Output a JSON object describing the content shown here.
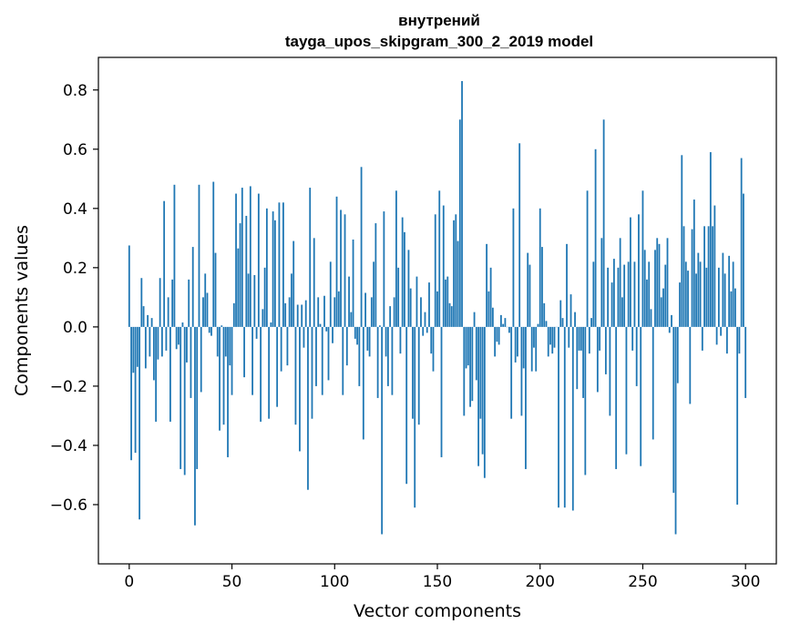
{
  "chart_data": {
    "type": "bar",
    "title_line1": "внутрений",
    "title_line2": "tayga_upos_skipgram_300_2_2019 model",
    "xlabel": "Vector components",
    "ylabel": "Components values",
    "xlim": [
      -15,
      315
    ],
    "ylim": [
      -0.8,
      0.91
    ],
    "xticks": [
      0,
      50,
      100,
      150,
      200,
      250,
      300
    ],
    "yticks": [
      -0.6,
      -0.4,
      -0.2,
      0.0,
      0.2,
      0.4,
      0.6,
      0.8
    ],
    "ytick_labels": [
      "−0.6",
      "−0.4",
      "−0.2",
      "0.0",
      "0.2",
      "0.4",
      "0.6",
      "0.8"
    ],
    "bar_color": "#1f77b4",
    "values": [
      0.275,
      -0.45,
      -0.155,
      -0.425,
      -0.135,
      -0.65,
      0.165,
      0.07,
      -0.14,
      0.04,
      -0.1,
      0.03,
      -0.18,
      -0.32,
      -0.11,
      0.165,
      -0.1,
      0.425,
      -0.08,
      0.1,
      -0.32,
      0.16,
      0.48,
      -0.075,
      -0.06,
      -0.48,
      0.015,
      -0.5,
      -0.12,
      0.16,
      -0.24,
      0.27,
      -0.67,
      -0.48,
      0.48,
      -0.22,
      0.1,
      0.18,
      0.115,
      -0.02,
      -0.03,
      0.49,
      0.25,
      -0.1,
      -0.35,
      0.005,
      -0.33,
      -0.1,
      -0.44,
      -0.13,
      -0.23,
      0.08,
      0.45,
      0.265,
      0.35,
      0.47,
      -0.17,
      0.375,
      0.18,
      0.475,
      -0.23,
      0.175,
      -0.04,
      0.45,
      -0.32,
      0.06,
      0.2,
      0.4,
      -0.31,
      0.015,
      0.39,
      0.36,
      -0.27,
      0.42,
      -0.15,
      0.42,
      0.08,
      -0.13,
      0.1,
      0.18,
      0.29,
      -0.33,
      0.075,
      -0.42,
      0.075,
      -0.07,
      0.09,
      -0.55,
      0.47,
      -0.31,
      0.3,
      -0.2,
      0.1,
      0.01,
      -0.23,
      0.105,
      -0.015,
      -0.18,
      0.22,
      -0.055,
      0.1,
      0.44,
      0.12,
      0.395,
      -0.23,
      0.38,
      -0.13,
      0.17,
      0.05,
      0.295,
      -0.04,
      -0.06,
      -0.2,
      0.54,
      -0.38,
      0.115,
      -0.08,
      -0.1,
      0.1,
      0.22,
      0.35,
      -0.24,
      0.005,
      -0.7,
      0.39,
      -0.1,
      -0.2,
      0.07,
      -0.23,
      0.1,
      0.46,
      0.2,
      -0.09,
      0.37,
      0.32,
      -0.53,
      0.26,
      0.13,
      -0.31,
      -0.61,
      0.17,
      -0.33,
      0.1,
      -0.03,
      0.05,
      -0.02,
      0.15,
      -0.09,
      -0.15,
      0.38,
      0.12,
      0.46,
      -0.44,
      0.41,
      0.16,
      0.17,
      0.08,
      0.07,
      0.36,
      0.38,
      0.29,
      0.7,
      0.83,
      -0.3,
      -0.14,
      -0.13,
      -0.27,
      -0.25,
      0.05,
      -0.18,
      -0.47,
      -0.31,
      -0.43,
      -0.51,
      0.28,
      0.12,
      0.2,
      0.065,
      -0.1,
      -0.05,
      -0.06,
      0.04,
      0.01,
      0.03,
      0.0,
      -0.02,
      -0.31,
      0.4,
      -0.12,
      -0.1,
      0.62,
      -0.3,
      -0.14,
      -0.48,
      0.25,
      0.21,
      -0.15,
      -0.07,
      -0.15,
      0.01,
      0.4,
      0.27,
      0.08,
      0.02,
      -0.1,
      -0.06,
      -0.09,
      -0.07,
      0.0,
      -0.61,
      0.09,
      0.03,
      -0.61,
      0.28,
      -0.07,
      0.11,
      -0.62,
      0.05,
      -0.21,
      -0.08,
      -0.08,
      -0.24,
      -0.5,
      0.46,
      -0.09,
      0.03,
      0.22,
      0.6,
      -0.22,
      -0.08,
      0.3,
      0.7,
      -0.16,
      0.2,
      -0.3,
      0.15,
      0.23,
      -0.48,
      0.2,
      0.3,
      0.1,
      0.21,
      -0.43,
      0.22,
      0.37,
      -0.08,
      0.22,
      -0.2,
      0.38,
      -0.47,
      0.46,
      0.26,
      0.16,
      0.22,
      0.06,
      -0.38,
      0.26,
      0.3,
      0.28,
      0.1,
      0.13,
      0.21,
      0.3,
      -0.02,
      0.04,
      -0.56,
      -0.7,
      -0.19,
      0.15,
      0.58,
      0.34,
      0.22,
      0.19,
      -0.26,
      0.33,
      0.43,
      0.18,
      0.25,
      0.22,
      -0.08,
      0.34,
      0.2,
      0.34,
      0.59,
      0.34,
      0.41,
      -0.06,
      0.2,
      -0.03,
      0.25,
      0.18,
      -0.09,
      0.24,
      0.12,
      0.22,
      0.13,
      -0.6,
      -0.09,
      0.57,
      0.45,
      -0.24
    ]
  }
}
